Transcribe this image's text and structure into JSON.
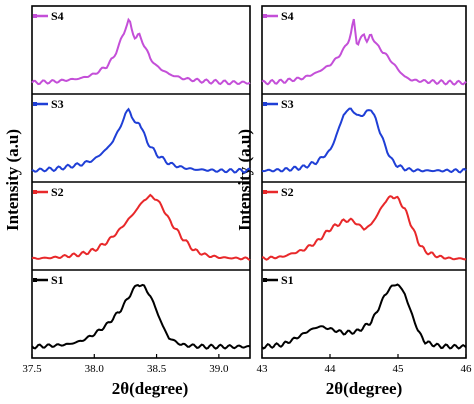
{
  "y_axis_label": "Intensity (a.u)",
  "x_axis_label": "2θ(degree)",
  "colors": {
    "S1": "#000000",
    "S2": "#e8282a",
    "S3": "#1f3fd6",
    "S4": "#c44fd8"
  },
  "chart_data": [
    {
      "type": "line",
      "ylabel": "Intensity (a.u)",
      "xlabel": "2θ(degree)",
      "xlim": [
        37.5,
        39.25
      ],
      "xticks": [
        "37.5",
        "38.0",
        "38.5",
        "39.0"
      ],
      "xtick_values": [
        37.5,
        38.0,
        38.5,
        39.0
      ],
      "grid": false,
      "legend": "top-left of each stacked panel",
      "panels": [
        {
          "name": "S4",
          "x": [
            37.5,
            37.7,
            37.9,
            38.0,
            38.1,
            38.15,
            38.2,
            38.25,
            38.28,
            38.3,
            38.33,
            38.36,
            38.4,
            38.45,
            38.5,
            38.6,
            38.7,
            38.8,
            38.9,
            39.0,
            39.1,
            39.25
          ],
          "y": [
            0.05,
            0.07,
            0.12,
            0.18,
            0.3,
            0.42,
            0.62,
            0.88,
            1.0,
            0.86,
            0.72,
            0.78,
            0.62,
            0.42,
            0.3,
            0.18,
            0.12,
            0.09,
            0.07,
            0.06,
            0.05,
            0.05
          ]
        },
        {
          "name": "S3",
          "x": [
            37.5,
            37.7,
            37.9,
            38.0,
            38.1,
            38.15,
            38.2,
            38.25,
            38.28,
            38.3,
            38.33,
            38.36,
            38.38,
            38.42,
            38.5,
            38.6,
            38.7,
            38.8,
            38.9,
            39.0,
            39.1,
            39.25
          ],
          "y": [
            0.05,
            0.08,
            0.15,
            0.22,
            0.38,
            0.5,
            0.68,
            0.9,
            1.0,
            0.88,
            0.74,
            0.8,
            0.7,
            0.5,
            0.3,
            0.16,
            0.1,
            0.07,
            0.06,
            0.05,
            0.05,
            0.05
          ]
        },
        {
          "name": "S2",
          "x": [
            37.5,
            37.7,
            37.9,
            38.0,
            38.1,
            38.2,
            38.3,
            38.35,
            38.4,
            38.45,
            38.5,
            38.55,
            38.6,
            38.7,
            38.8,
            38.9,
            39.0,
            39.1,
            39.25
          ],
          "y": [
            0.05,
            0.07,
            0.12,
            0.18,
            0.3,
            0.48,
            0.7,
            0.82,
            0.94,
            1.0,
            0.95,
            0.82,
            0.64,
            0.38,
            0.18,
            0.1,
            0.07,
            0.06,
            0.05
          ]
        },
        {
          "name": "S1",
          "x": [
            37.5,
            37.7,
            37.8,
            37.9,
            38.0,
            38.1,
            38.2,
            38.25,
            38.3,
            38.35,
            38.4,
            38.45,
            38.5,
            38.55,
            38.6,
            38.7,
            38.8,
            38.9,
            39.0,
            39.1,
            39.25
          ],
          "y": [
            0.05,
            0.07,
            0.09,
            0.14,
            0.24,
            0.38,
            0.58,
            0.72,
            0.88,
            1.0,
            0.96,
            0.82,
            0.6,
            0.36,
            0.18,
            0.08,
            0.06,
            0.05,
            0.05,
            0.05,
            0.05
          ]
        }
      ]
    },
    {
      "type": "line",
      "ylabel": "Intensity (a.u)",
      "xlabel": "2θ(degree)",
      "xlim": [
        43,
        46
      ],
      "xticks": [
        "43",
        "44",
        "45",
        "46"
      ],
      "xtick_values": [
        43,
        44,
        45,
        46
      ],
      "grid": false,
      "legend": "top-left of each stacked panel",
      "panels": [
        {
          "name": "S4",
          "x": [
            43.0,
            43.3,
            43.6,
            43.8,
            44.0,
            44.1,
            44.2,
            44.3,
            44.35,
            44.4,
            44.45,
            44.5,
            44.55,
            44.6,
            44.65,
            44.7,
            44.8,
            44.9,
            45.0,
            45.1,
            45.2,
            45.4,
            45.6,
            45.8,
            46.0
          ],
          "y": [
            0.05,
            0.07,
            0.12,
            0.2,
            0.32,
            0.42,
            0.55,
            0.75,
            1.0,
            0.62,
            0.7,
            0.8,
            0.66,
            0.78,
            0.7,
            0.6,
            0.5,
            0.38,
            0.25,
            0.14,
            0.09,
            0.07,
            0.06,
            0.05,
            0.05
          ]
        },
        {
          "name": "S3",
          "x": [
            43.0,
            43.3,
            43.6,
            43.8,
            44.0,
            44.1,
            44.2,
            44.3,
            44.4,
            44.5,
            44.6,
            44.7,
            44.8,
            44.9,
            45.0,
            45.1,
            45.2,
            45.4,
            45.6,
            45.8,
            46.0
          ],
          "y": [
            0.05,
            0.06,
            0.1,
            0.18,
            0.35,
            0.6,
            0.9,
            1.0,
            0.88,
            0.9,
            1.0,
            0.75,
            0.45,
            0.22,
            0.12,
            0.08,
            0.06,
            0.05,
            0.05,
            0.05,
            0.05
          ]
        },
        {
          "name": "S2",
          "x": [
            43.0,
            43.3,
            43.6,
            43.8,
            44.0,
            44.2,
            44.3,
            44.4,
            44.5,
            44.6,
            44.7,
            44.8,
            44.9,
            45.0,
            45.1,
            45.2,
            45.3,
            45.4,
            45.6,
            45.8,
            46.0
          ],
          "y": [
            0.05,
            0.08,
            0.18,
            0.3,
            0.5,
            0.62,
            0.64,
            0.58,
            0.5,
            0.56,
            0.72,
            0.9,
            1.0,
            0.96,
            0.8,
            0.55,
            0.3,
            0.16,
            0.08,
            0.05,
            0.05
          ]
        },
        {
          "name": "S1",
          "x": [
            43.0,
            43.3,
            43.5,
            43.7,
            43.85,
            44.0,
            44.2,
            44.4,
            44.6,
            44.7,
            44.8,
            44.9,
            45.0,
            45.1,
            45.2,
            45.3,
            45.4,
            45.6,
            45.8,
            46.0
          ],
          "y": [
            0.05,
            0.08,
            0.18,
            0.3,
            0.36,
            0.32,
            0.26,
            0.28,
            0.42,
            0.6,
            0.82,
            0.96,
            1.0,
            0.85,
            0.55,
            0.28,
            0.12,
            0.06,
            0.05,
            0.05
          ]
        }
      ]
    }
  ]
}
